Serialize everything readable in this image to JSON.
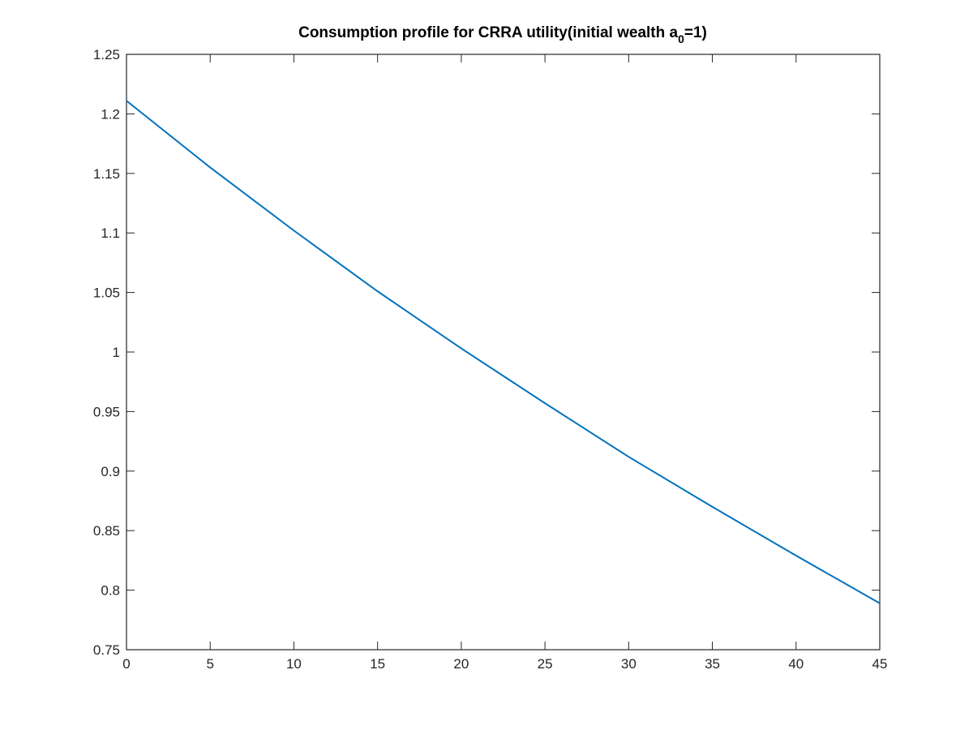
{
  "chart_data": {
    "type": "line",
    "title": {
      "prefix": "Consumption profile for CRRA utility(initial wealth a",
      "subscript": "0",
      "suffix": "=1)"
    },
    "xlabel": "",
    "ylabel": "",
    "xlim": [
      0,
      45
    ],
    "ylim": [
      0.75,
      1.25
    ],
    "xticks": [
      0,
      5,
      10,
      15,
      20,
      25,
      30,
      35,
      40,
      45
    ],
    "yticks": [
      0.75,
      0.8,
      0.85,
      0.9,
      0.95,
      1,
      1.05,
      1.1,
      1.15,
      1.2,
      1.25
    ],
    "xtick_labels": [
      "0",
      "5",
      "10",
      "15",
      "20",
      "25",
      "30",
      "35",
      "40",
      "45"
    ],
    "ytick_labels": [
      "0.75",
      "0.8",
      "0.85",
      "0.9",
      "0.95",
      "1",
      "1.05",
      "1.1",
      "1.15",
      "1.2",
      "1.25"
    ],
    "grid": false,
    "line_color": "#0072BD",
    "series": [
      {
        "x": [
          0,
          5,
          10,
          15,
          20,
          25,
          30,
          35,
          40,
          45
        ],
        "values": [
          1.211,
          1.155,
          1.102,
          1.051,
          1.003,
          0.957,
          0.912,
          0.87,
          0.829,
          0.789
        ]
      }
    ]
  }
}
